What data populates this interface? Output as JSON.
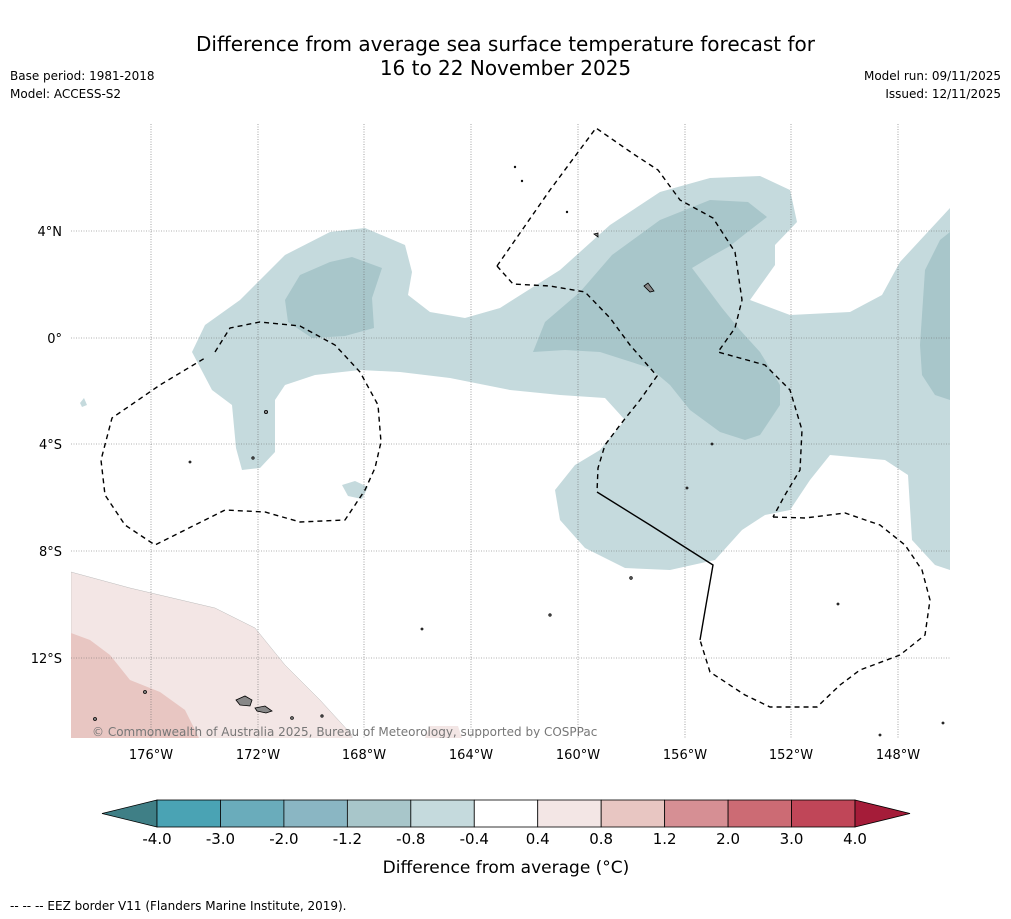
{
  "title": {
    "line1": "Difference from average sea surface temperature forecast for",
    "line2": "16 to 22 November 2025"
  },
  "meta": {
    "base_period": "Base period: 1981-2018",
    "model": "Model: ACCESS-S2",
    "model_run": "Model run: 09/11/2025",
    "issued": "Issued: 12/11/2025"
  },
  "map": {
    "lat_labels": [
      "4°N",
      "0°",
      "4°S",
      "8°S",
      "12°S"
    ],
    "lon_labels": [
      "176°W",
      "172°W",
      "168°W",
      "164°W",
      "160°W",
      "156°W",
      "152°W",
      "148°W"
    ],
    "copyright": "© Commonwealth of Australia 2025, Bureau of Meteorology, supported by COSPPac",
    "colors": {
      "cool_light": "#c5dadd",
      "cool_mid": "#a8c6ca",
      "warm_light": "#f3e6e5",
      "warm_mid": "#e8c6c2",
      "grid": "#555555",
      "eez": "#000000"
    }
  },
  "colorbar": {
    "ticks": [
      "-4.0",
      "-3.0",
      "-2.0",
      "-1.2",
      "-0.8",
      "-0.4",
      "0.4",
      "0.8",
      "1.2",
      "2.0",
      "3.0",
      "4.0"
    ],
    "colors": [
      "#3f7f86",
      "#4aa3b4",
      "#6aacbb",
      "#8ab6c3",
      "#a8c6ca",
      "#c5dadd",
      "#ffffff",
      "#f3e6e5",
      "#e8c6c2",
      "#d68f94",
      "#cc6b74",
      "#c04658",
      "#a51c39"
    ],
    "label": "Difference from average (°C)"
  },
  "footnote": "--  --  -- EEZ border V11 (Flanders Marine Institute, 2019)."
}
